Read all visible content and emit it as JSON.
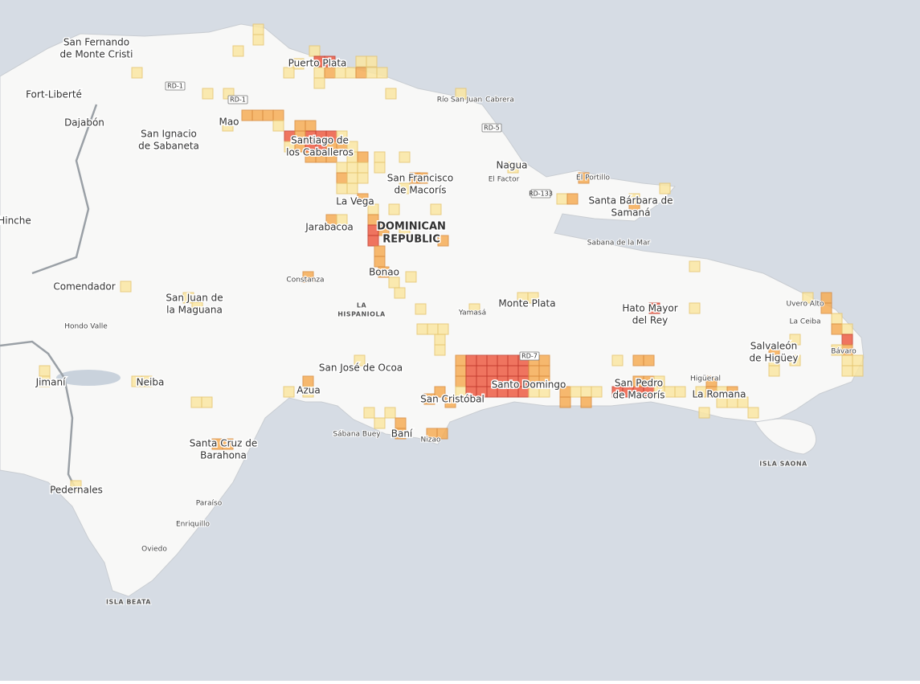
{
  "map": {
    "places": [
      [
        "San Fernando",
        "de Monte Cristi"
      ],
      [
        "Fort-Liberté"
      ],
      [
        "Dajabón"
      ],
      [
        "Hinche"
      ],
      [
        "Comendador"
      ],
      [
        "Hondo Valle"
      ],
      [
        "Jimaní"
      ],
      [
        "Pedernales"
      ],
      [
        "Neiba"
      ],
      [
        "Santa Cruz de",
        "Barahona"
      ],
      [
        "Paraíso"
      ],
      [
        "Enriquillo"
      ],
      [
        "Oviedo"
      ],
      [
        "San Ignacio",
        "de Sabaneta"
      ],
      [
        "Mao"
      ],
      [
        "Puerto Plata"
      ],
      [
        "Santiago de",
        "los Caballeros"
      ],
      [
        "Río San Juan"
      ],
      [
        "Cabrera"
      ],
      [
        "Nagua"
      ],
      [
        "El Factor"
      ],
      [
        "El Portillo"
      ],
      [
        "Santa Bárbara de",
        "Samaná"
      ],
      [
        "Sabana de la Mar"
      ],
      [
        "San Francisco",
        "de Macorís"
      ],
      [
        "La Vega"
      ],
      [
        "Jarabacoa"
      ],
      [
        "Bonao"
      ],
      [
        "Constanza"
      ],
      [
        "San Juan de",
        "la Maguana"
      ],
      [
        "Azua"
      ],
      [
        "San José de Ocoa"
      ],
      [
        "Sábana Buey"
      ],
      [
        "Baní"
      ],
      [
        "Nizao"
      ],
      [
        "San Cristóbal"
      ],
      [
        "Santo Domingo"
      ],
      [
        "Yamasá"
      ],
      [
        "Monte Plata"
      ],
      [
        "Hato Mayor",
        "del Rey"
      ],
      [
        "San Pedro",
        "de Macorís"
      ],
      [
        "Higüeral"
      ],
      [
        "La Romana"
      ],
      [
        "Salvaleón",
        "de Higüey"
      ],
      [
        "Uvero Alto"
      ],
      [
        "La Ceiba"
      ],
      [
        "Bávaro"
      ]
    ],
    "roads": [
      "RD-1",
      "RD-1",
      "RD-5",
      "RD-133",
      "RD-7"
    ],
    "regions": [
      [
        "DOMINICAN",
        "REPUBLIC"
      ],
      [
        "LA",
        "HISPANIOLA"
      ],
      [
        "ISLA SAONA"
      ],
      [
        "ISLA BEATA"
      ]
    ]
  }
}
